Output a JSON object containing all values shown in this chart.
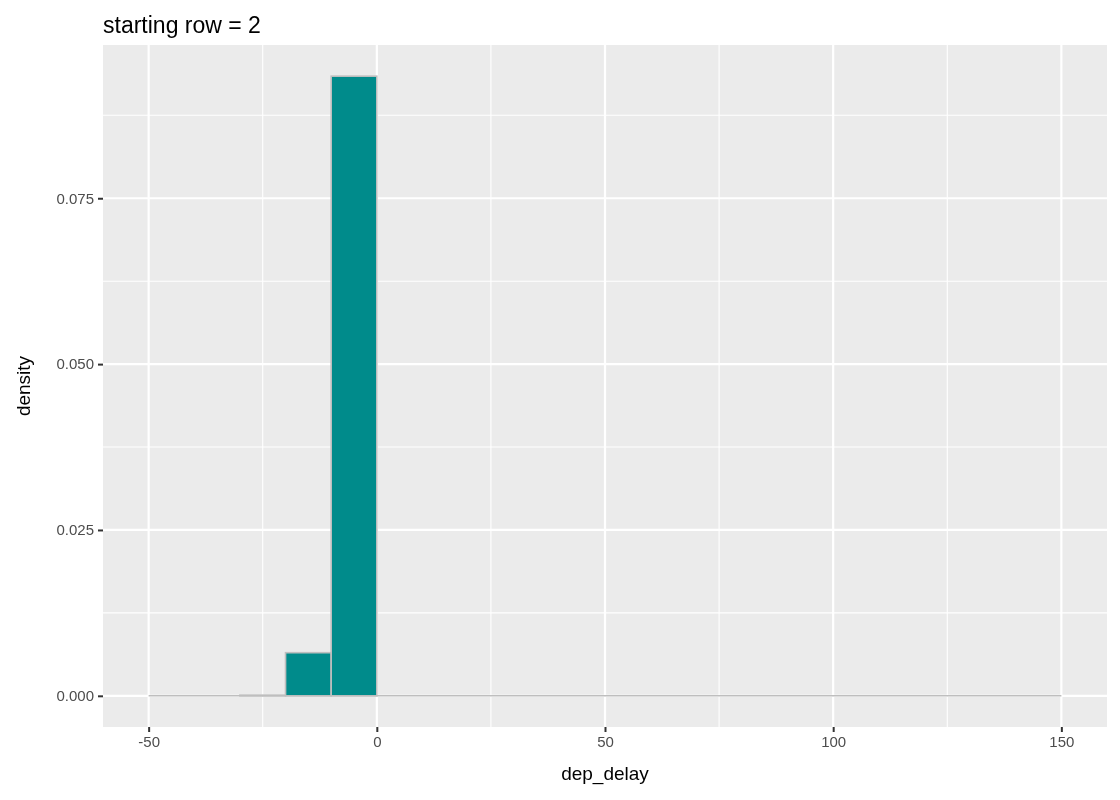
{
  "chart_data": {
    "type": "histogram",
    "title": "starting row = 2",
    "xlabel": "dep_delay",
    "ylabel": "density",
    "bins": [
      -50,
      -40,
      -30,
      -20,
      -10,
      0,
      10,
      20,
      30,
      40,
      50,
      60,
      70,
      80,
      90,
      100,
      110,
      120,
      130,
      140,
      150
    ],
    "values": [
      0,
      0,
      0.0001,
      0.0065,
      0.0934,
      0,
      0,
      0,
      0,
      0,
      0,
      0,
      0,
      0,
      0,
      0,
      0,
      0,
      0,
      0
    ],
    "color": "#008b8b",
    "xlim": [
      -60,
      160
    ],
    "xticks": [
      -50,
      0,
      50,
      100,
      150
    ],
    "ylim": [
      -0.0047,
      0.0981
    ],
    "yticks": [
      {
        "value": 0,
        "label": "0.000"
      },
      0.025,
      {
        "value": 0.05,
        "label": "0.050"
      },
      0.075
    ],
    "grid": true
  }
}
